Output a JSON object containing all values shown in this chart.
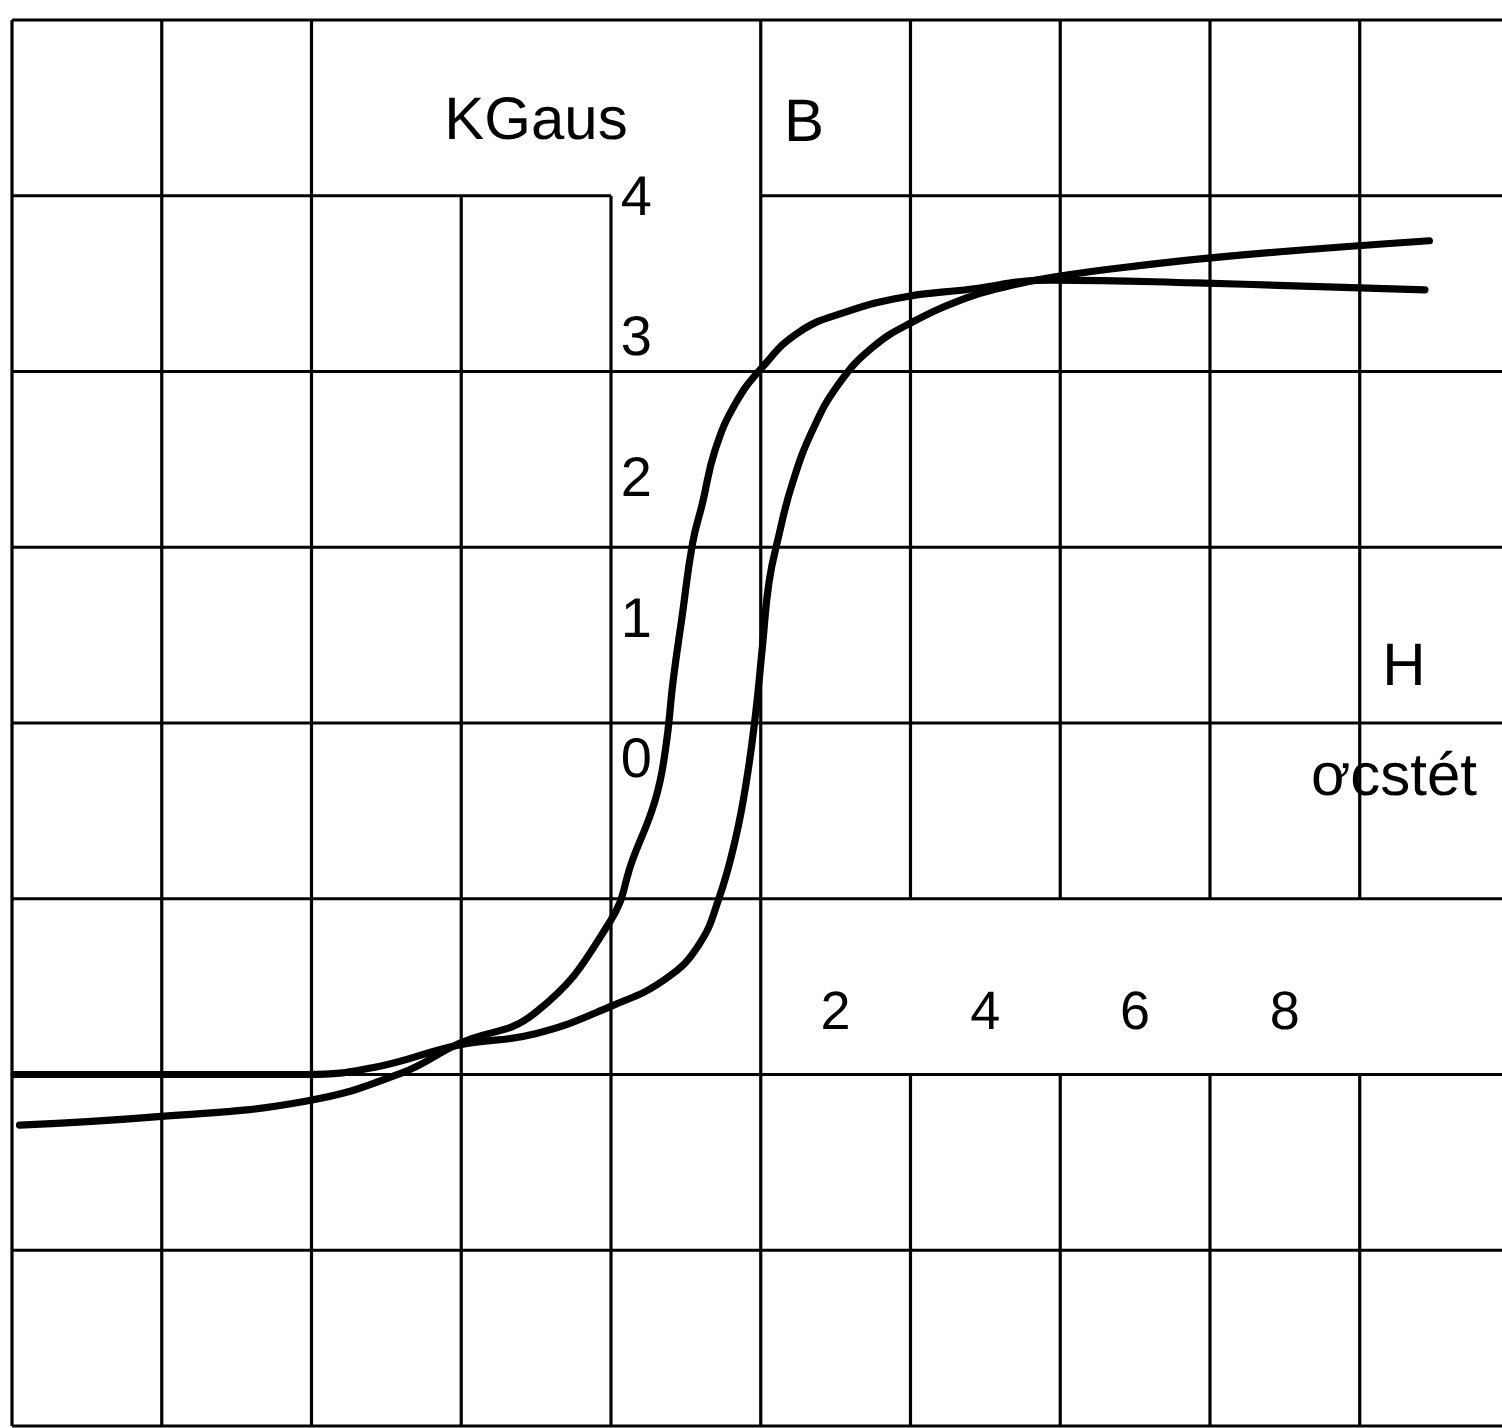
{
  "chart_data": {
    "type": "line",
    "xlabel": "H",
    "ylabel": "B",
    "annotations": [
      "KGaus",
      "ơcstét"
    ],
    "series": [
      {
        "color": "#000000",
        "x": [
          -8.9,
          -7.05,
          -5.08,
          -3.8,
          -3.03,
          -2.01,
          -1.01,
          -0.71,
          -0.41,
          -0.27,
          -0.17,
          -0.05,
          0.09,
          0.22,
          0.39,
          0.66,
          1.02,
          1.51,
          2.12,
          2.92,
          3.72,
          4.89,
          6.81,
          9.87
        ],
        "values": [
          -2.61,
          -2.55,
          -2.44,
          -2.24,
          -2.03,
          -1.81,
          -1.16,
          -0.72,
          -0.3,
          0.07,
          0.55,
          1.01,
          1.53,
          1.81,
          2.19,
          2.52,
          2.78,
          3.03,
          3.17,
          3.28,
          3.33,
          3.4,
          3.38,
          3.33
        ]
      },
      {
        "color": "#000000",
        "x": [
          -8.97,
          -7.03,
          -5.08,
          -4.17,
          -3.03,
          -2.01,
          -0.98,
          -0.27,
          0.17,
          0.44,
          0.66,
          0.81,
          0.93,
          1.02,
          1.11,
          1.24,
          1.42,
          1.69,
          2.04,
          2.49,
          3.02,
          3.73,
          4.17,
          4.89,
          6.17,
          7.44,
          9.93
        ],
        "values": [
          -2.25,
          -2.25,
          -2.25,
          -2.2,
          -2.04,
          -1.96,
          -1.76,
          -1.57,
          -1.33,
          -1.0,
          -0.58,
          -0.16,
          0.31,
          0.78,
          1.25,
          1.58,
          1.95,
          2.33,
          2.66,
          2.92,
          3.1,
          3.27,
          3.34,
          3.42,
          3.51,
          3.58,
          3.68
        ]
      }
    ],
    "xlim": [
      -9,
      10.9
    ],
    "ylim": [
      -4.75,
      5.25
    ],
    "xticks": [
      {
        "value": -9,
        "label": null
      },
      {
        "value": -7,
        "label": null
      },
      {
        "value": -5,
        "label": null
      },
      {
        "value": -3,
        "label": null
      },
      {
        "value": -1,
        "label": null
      },
      {
        "value": 1,
        "label": null
      },
      2,
      {
        "value": 3,
        "label": null
      },
      4,
      {
        "value": 5,
        "label": null
      },
      6,
      {
        "value": 7,
        "label": null
      },
      8,
      {
        "value": 9,
        "label": null
      }
    ],
    "yticks": [
      {
        "value": -4.75,
        "label": null
      },
      {
        "value": -3.5,
        "label": null
      },
      {
        "value": -2.25,
        "label": null
      },
      {
        "value": -1,
        "label": null
      },
      0,
      {
        "value": 0.25,
        "label": null
      },
      1,
      {
        "value": 1.5,
        "label": null
      },
      2,
      {
        "value": 2.75,
        "label": null
      },
      3,
      4,
      {
        "value": 5.25,
        "label": null
      }
    ],
    "grid": true
  }
}
